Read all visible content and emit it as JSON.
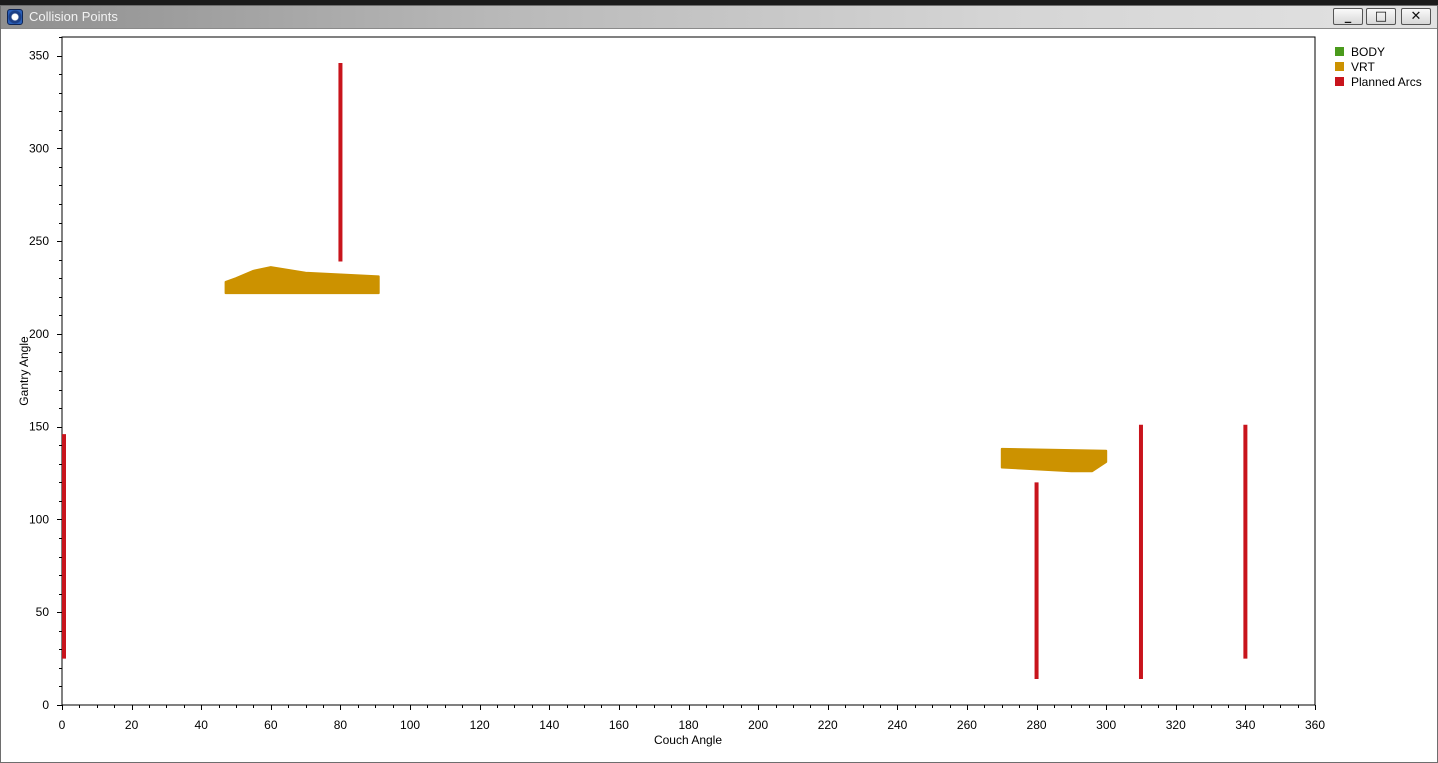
{
  "window": {
    "title": "Collision Points",
    "buttons": {
      "minimize": "_",
      "maximize": "□",
      "close": "✕"
    },
    "icon": "app-logo-icon"
  },
  "chart_data": {
    "type": "scatter",
    "xlabel": "Couch Angle",
    "ylabel": "Gantry Angle",
    "xlim": [
      0,
      360
    ],
    "ylim": [
      0,
      360
    ],
    "x_ticks": [
      0,
      20,
      40,
      60,
      80,
      100,
      120,
      140,
      160,
      180,
      200,
      220,
      240,
      260,
      280,
      300,
      320,
      340,
      360
    ],
    "y_ticks": [
      0,
      50,
      100,
      150,
      200,
      250,
      300,
      350
    ],
    "grid": false,
    "legend_position": "right",
    "legend": [
      {
        "name": "BODY",
        "color": "#4a9a1c"
      },
      {
        "name": "VRT",
        "color": "#cc9200"
      },
      {
        "name": "Planned Arcs",
        "color": "#c8141c"
      }
    ],
    "series": [
      {
        "name": "BODY",
        "color": "#4a9a1c",
        "regions": []
      },
      {
        "name": "VRT",
        "color": "#cc9200",
        "regions": [
          {
            "outline": [
              [
                47,
                222
              ],
              [
                91,
                222
              ],
              [
                91,
                231
              ],
              [
                70,
                233
              ],
              [
                60,
                236
              ],
              [
                55,
                234
              ],
              [
                50,
                230
              ],
              [
                47,
                228
              ]
            ]
          },
          {
            "outline": [
              [
                270,
                128
              ],
              [
                290,
                126
              ],
              [
                296,
                126
              ],
              [
                300,
                131
              ],
              [
                300,
                137
              ],
              [
                270,
                138
              ]
            ]
          }
        ]
      },
      {
        "name": "Planned Arcs",
        "color": "#c8141c",
        "arcs": [
          {
            "couch": 0,
            "gantry_start": 25,
            "gantry_end": 146
          },
          {
            "couch": 80,
            "gantry_start": 239,
            "gantry_end": 346
          },
          {
            "couch": 280,
            "gantry_start": 14,
            "gantry_end": 120
          },
          {
            "couch": 310,
            "gantry_start": 14,
            "gantry_end": 151
          },
          {
            "couch": 340,
            "gantry_start": 25,
            "gantry_end": 151
          }
        ]
      }
    ]
  }
}
